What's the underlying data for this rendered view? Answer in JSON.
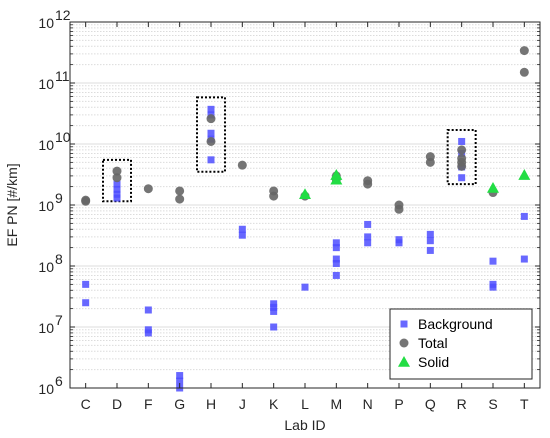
{
  "chart_data": {
    "type": "scatter",
    "xlabel": "Lab ID",
    "ylabel": "EF PN [#/km]",
    "categories": [
      "C",
      "D",
      "F",
      "G",
      "H",
      "J",
      "K",
      "L",
      "M",
      "N",
      "P",
      "Q",
      "R",
      "S",
      "T"
    ],
    "ylim": [
      1000000,
      1000000000000
    ],
    "yscale": "log",
    "y_tick_base": "10",
    "y_tick_exponents": [
      "6",
      "7",
      "8",
      "9",
      "10",
      "11",
      "12"
    ],
    "grid": "horizontal major and minor",
    "legend_position": "bottom-right",
    "series": [
      {
        "name": "Background",
        "marker": "square",
        "color": "#4d4dff",
        "points": [
          [
            "C",
            50000000
          ],
          [
            "C",
            25000000
          ],
          [
            "D",
            2200000000
          ],
          [
            "D",
            1800000000
          ],
          [
            "D",
            1500000000
          ],
          [
            "D",
            1300000000
          ],
          [
            "F",
            19000000
          ],
          [
            "F",
            9000000
          ],
          [
            "F",
            8000000
          ],
          [
            "G",
            1600000
          ],
          [
            "G",
            1300000
          ],
          [
            "G",
            1000000
          ],
          [
            "H",
            37000000000
          ],
          [
            "H",
            30000000000
          ],
          [
            "H",
            15000000000
          ],
          [
            "H",
            12000000000
          ],
          [
            "H",
            5500000000
          ],
          [
            "J",
            400000000
          ],
          [
            "J",
            320000000
          ],
          [
            "K",
            24000000
          ],
          [
            "K",
            21000000
          ],
          [
            "K",
            18000000
          ],
          [
            "K",
            10000000
          ],
          [
            "L",
            45000000
          ],
          [
            "M",
            240000000
          ],
          [
            "M",
            200000000
          ],
          [
            "M",
            130000000
          ],
          [
            "M",
            110000000
          ],
          [
            "M",
            70000000
          ],
          [
            "N",
            480000000
          ],
          [
            "N",
            300000000
          ],
          [
            "N",
            240000000
          ],
          [
            "P",
            270000000
          ],
          [
            "P",
            240000000
          ],
          [
            "Q",
            330000000
          ],
          [
            "Q",
            260000000
          ],
          [
            "Q",
            180000000
          ],
          [
            "R",
            11000000000
          ],
          [
            "R",
            7000000000
          ],
          [
            "R",
            4200000000
          ],
          [
            "R",
            2800000000
          ],
          [
            "S",
            120000000
          ],
          [
            "S",
            50000000
          ],
          [
            "S",
            45000000
          ],
          [
            "T",
            650000000
          ],
          [
            "T",
            130000000
          ]
        ]
      },
      {
        "name": "Total",
        "marker": "circle",
        "color": "#666666",
        "points": [
          [
            "C",
            1200000000
          ],
          [
            "C",
            1150000000
          ],
          [
            "D",
            3600000000
          ],
          [
            "D",
            2800000000
          ],
          [
            "F",
            1850000000
          ],
          [
            "G",
            1700000000
          ],
          [
            "G",
            1250000000
          ],
          [
            "H",
            26000000000
          ],
          [
            "H",
            11000000000
          ],
          [
            "J",
            4500000000
          ],
          [
            "K",
            1700000000
          ],
          [
            "K",
            1400000000
          ],
          [
            "L",
            1400000000
          ],
          [
            "M",
            3000000000
          ],
          [
            "M",
            2600000000
          ],
          [
            "N",
            2500000000
          ],
          [
            "N",
            2200000000
          ],
          [
            "P",
            1000000000
          ],
          [
            "P",
            850000000
          ],
          [
            "Q",
            6200000000
          ],
          [
            "Q",
            5000000000
          ],
          [
            "R",
            8000000000
          ],
          [
            "R",
            5800000000
          ],
          [
            "R",
            5000000000
          ],
          [
            "R",
            4300000000
          ],
          [
            "S",
            1600000000
          ],
          [
            "T",
            340000000000
          ],
          [
            "T",
            150000000000
          ]
        ]
      },
      {
        "name": "Solid",
        "marker": "triangle",
        "color": "#22dd44",
        "points": [
          [
            "L",
            1500000000
          ],
          [
            "M",
            3100000000
          ],
          [
            "M",
            2600000000
          ],
          [
            "S",
            1900000000
          ],
          [
            "T",
            3100000000
          ]
        ]
      }
    ],
    "highlight_boxes": [
      {
        "category": "D",
        "ymin": 1150000000,
        "ymax": 5500000000
      },
      {
        "category": "H",
        "ymin": 3500000000,
        "ymax": 58000000000
      },
      {
        "category": "R",
        "ymin": 2200000000,
        "ymax": 17000000000
      }
    ]
  }
}
